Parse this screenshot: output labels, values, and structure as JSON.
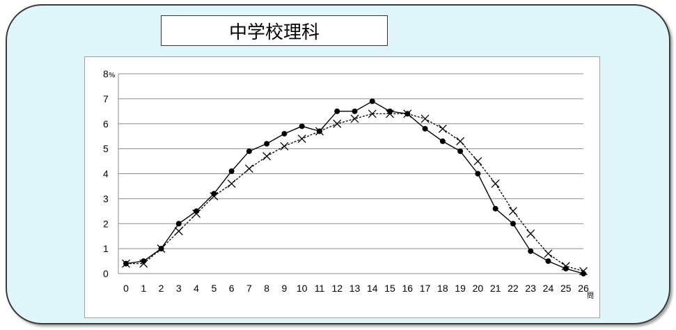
{
  "title": "中学校理科",
  "chart_data": {
    "type": "line",
    "title": "中学校理科",
    "xlabel": "問",
    "ylabel": "%",
    "x": [
      0,
      1,
      2,
      3,
      4,
      5,
      6,
      7,
      8,
      9,
      10,
      11,
      12,
      13,
      14,
      15,
      16,
      17,
      18,
      19,
      20,
      21,
      22,
      23,
      24,
      25,
      26
    ],
    "ylim": [
      0,
      8
    ],
    "xlim": [
      0,
      26
    ],
    "y_ticks": [
      0,
      1,
      2,
      3,
      4,
      5,
      6,
      7,
      8
    ],
    "grid": true,
    "legend": "none",
    "series": [
      {
        "values": [
          0.4,
          0.5,
          1.0,
          2.0,
          2.5,
          3.2,
          4.1,
          4.9,
          5.2,
          5.6,
          5.9,
          5.7,
          6.5,
          6.5,
          6.9,
          6.5,
          6.4,
          5.8,
          5.3,
          4.9,
          4.0,
          2.6,
          2.0,
          0.9,
          0.5,
          0.2,
          0.0
        ],
        "style": "solid",
        "marker": "circle",
        "color": "#000000"
      },
      {
        "values": [
          0.4,
          0.4,
          1.0,
          1.7,
          2.4,
          3.1,
          3.6,
          4.2,
          4.7,
          5.1,
          5.4,
          5.7,
          6.0,
          6.2,
          6.4,
          6.4,
          6.4,
          6.2,
          5.8,
          5.3,
          4.5,
          3.6,
          2.5,
          1.6,
          0.8,
          0.3,
          0.1
        ],
        "style": "dashed",
        "marker": "x",
        "color": "#000000"
      }
    ]
  }
}
